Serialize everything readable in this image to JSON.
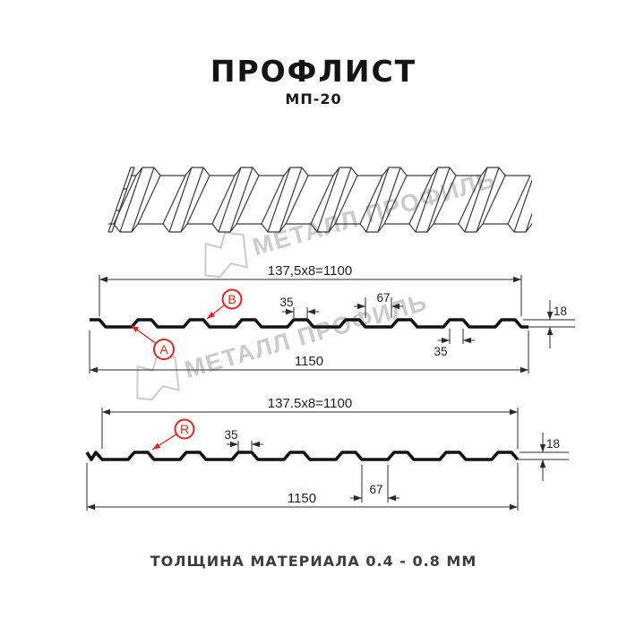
{
  "title": "ПРОФЛИСТ",
  "subtitle": "МП-20",
  "footer_note": "ТОЛЩИНА МАТЕРИАЛА 0.4 - 0.8 ММ",
  "watermark": {
    "text": "МЕТАЛЛ ПРОФИЛЬ",
    "color": "#cbcbcb"
  },
  "colors": {
    "accent": "#e5251c",
    "ink": "#141414",
    "dim_line": "#2b2b2b",
    "sheet_outline": "#3a3a3a"
  },
  "sections": [
    {
      "name": "cross-section-with-A-B",
      "dims": {
        "width_top": "137,5x8=1100",
        "overall": "1150",
        "rib_top": "35",
        "valley": "67",
        "height": "18",
        "rib_top_lower": "35"
      },
      "labels": [
        {
          "id": "A"
        },
        {
          "id": "B"
        }
      ]
    },
    {
      "name": "cross-section-with-R",
      "dims": {
        "width_top": "137.5x8=1100",
        "overall": "1150",
        "rib_top": "35",
        "valley": "67",
        "height": "18"
      },
      "labels": [
        {
          "id": "R"
        }
      ]
    }
  ]
}
